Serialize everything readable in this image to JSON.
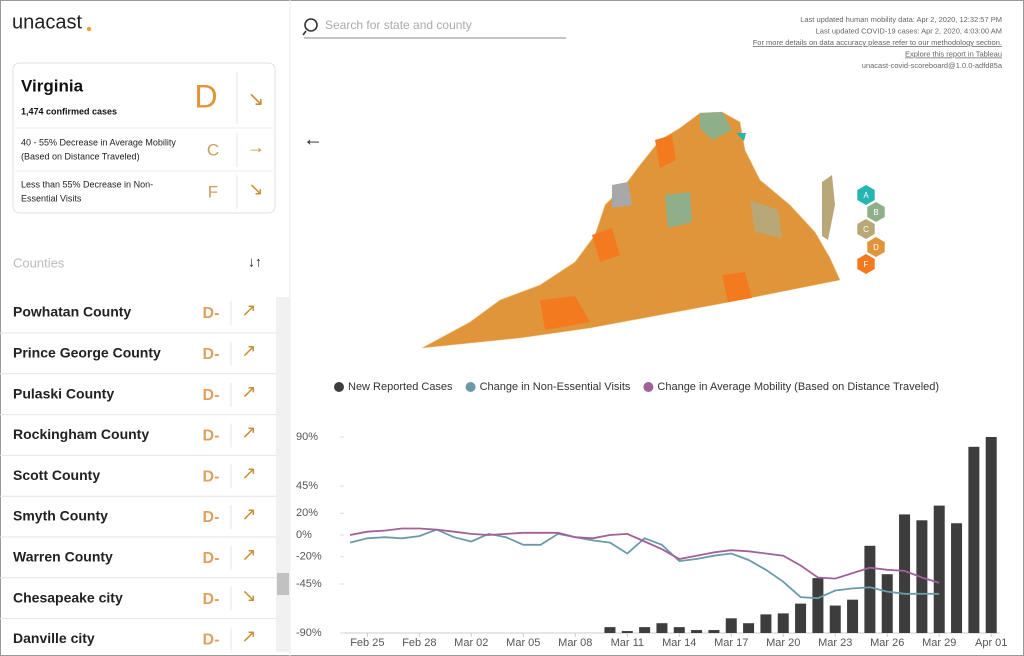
{
  "header": {
    "logo": "unacast",
    "search_placeholder": "Search for state and county",
    "updates": [
      "Last updated human mobility data: Apr 2, 2020, 12:32:57 PM",
      "Last updated COVID-19 cases: Apr 2, 2020, 4:03:00 AM",
      "For more details on data accuracy please refer to our methodology section.",
      "Explore this report in Tableau",
      "unacast-covid-scoreboard@1.0.0-adfd85a"
    ]
  },
  "state": {
    "name": "Virginia",
    "cases": "1,474 confirmed cases",
    "grade": "D",
    "trend": "↘",
    "metrics": [
      {
        "label": [
          "40 - 55% Decrease in Average Mobility",
          "(Based on Distance Traveled)"
        ],
        "grade": "C",
        "trend": "→"
      },
      {
        "label": [
          "Less than 55% Decrease in Non-",
          "Essential Visits"
        ],
        "grade": "F",
        "trend": "↘"
      }
    ]
  },
  "counties": {
    "title": "Counties",
    "sort_icon": "↓↑",
    "items": [
      {
        "name": "Powhatan County",
        "grade": "D-",
        "trend": "↗"
      },
      {
        "name": "Prince George County",
        "grade": "D-",
        "trend": "↗"
      },
      {
        "name": "Pulaski County",
        "grade": "D-",
        "trend": "↗"
      },
      {
        "name": "Rockingham County",
        "grade": "D-",
        "trend": "↗"
      },
      {
        "name": "Scott County",
        "grade": "D-",
        "trend": "↗"
      },
      {
        "name": "Smyth County",
        "grade": "D-",
        "trend": "↗"
      },
      {
        "name": "Warren County",
        "grade": "D-",
        "trend": "↗"
      },
      {
        "name": "Chesapeake city",
        "grade": "D-",
        "trend": "↘"
      },
      {
        "name": "Danville city",
        "grade": "D-",
        "trend": "↗"
      }
    ]
  },
  "map": {
    "back": "←",
    "grade_legend": [
      {
        "grade": "A",
        "color": "#26b5b0"
      },
      {
        "grade": "B",
        "color": "#8fae8a"
      },
      {
        "grade": "C",
        "color": "#b8a878"
      },
      {
        "grade": "D",
        "color": "#e0953a"
      },
      {
        "grade": "F",
        "color": "#f47a20"
      }
    ]
  },
  "chart_data": {
    "type": "combo",
    "categories": [
      null,
      "Feb 25",
      null,
      null,
      "Feb 28",
      null,
      null,
      "Mar 02",
      null,
      null,
      "Mar 05",
      null,
      null,
      "Mar 08",
      null,
      null,
      "Mar 11",
      null,
      null,
      "Mar 14",
      null,
      null,
      "Mar 17",
      null,
      null,
      "Mar 20",
      null,
      null,
      "Mar 23",
      null,
      null,
      "Mar 26",
      null,
      null,
      "Mar 29",
      null,
      null,
      "Apr 01"
    ],
    "ylim": [
      -90,
      90
    ],
    "yticks": [
      {
        "value": 90,
        "label": "90%"
      },
      {
        "value": 45,
        "label": "45%"
      },
      {
        "value": 20,
        "label": "20%"
      },
      {
        "value": 0,
        "label": "0%"
      },
      {
        "value": -20,
        "label": "-20%"
      },
      {
        "value": -45,
        "label": "-45%"
      },
      {
        "value": -90,
        "label": "-90%"
      }
    ],
    "y2lim": [
      0,
      200
    ],
    "series": [
      {
        "name": "New Reported Cases",
        "kind": "bar",
        "axis": "y2",
        "color": "#3d3d3d",
        "values": [
          0,
          0,
          0,
          0,
          0,
          0,
          0,
          0,
          0,
          0,
          0,
          0,
          0,
          0,
          0,
          6,
          2,
          6,
          10,
          6,
          3,
          3,
          15,
          10,
          19,
          20,
          30,
          56,
          28,
          34,
          89,
          60,
          121,
          115,
          130,
          112,
          190,
          200
        ]
      },
      {
        "name": "Change in Non-Essential Visits",
        "kind": "line",
        "color": "#6b9bab",
        "values": [
          -7,
          -3,
          -2,
          -3,
          -1,
          5,
          -2,
          -6,
          1,
          -2,
          -9,
          -9,
          1,
          -2,
          -5,
          -7,
          -17,
          -3,
          -9,
          -24,
          -22,
          -19,
          -17,
          -23,
          -32,
          -43,
          -57,
          -58,
          -51,
          -49,
          -48,
          -52,
          -54,
          -54,
          -54,
          null,
          null,
          null
        ]
      },
      {
        "name": "Change in Average Mobility (Based on Distance Traveled)",
        "kind": "line",
        "color": "#a0609a",
        "values": [
          0,
          3,
          4,
          6,
          6,
          5,
          3,
          1,
          0,
          1,
          2,
          2,
          2,
          -2,
          -3,
          0,
          1,
          -6,
          -13,
          -22,
          -19,
          -16,
          -14,
          -15,
          -17,
          -19,
          -28,
          -39,
          -40,
          -35,
          -30,
          -32,
          -33,
          -39,
          -44,
          null,
          null,
          null
        ]
      }
    ]
  }
}
